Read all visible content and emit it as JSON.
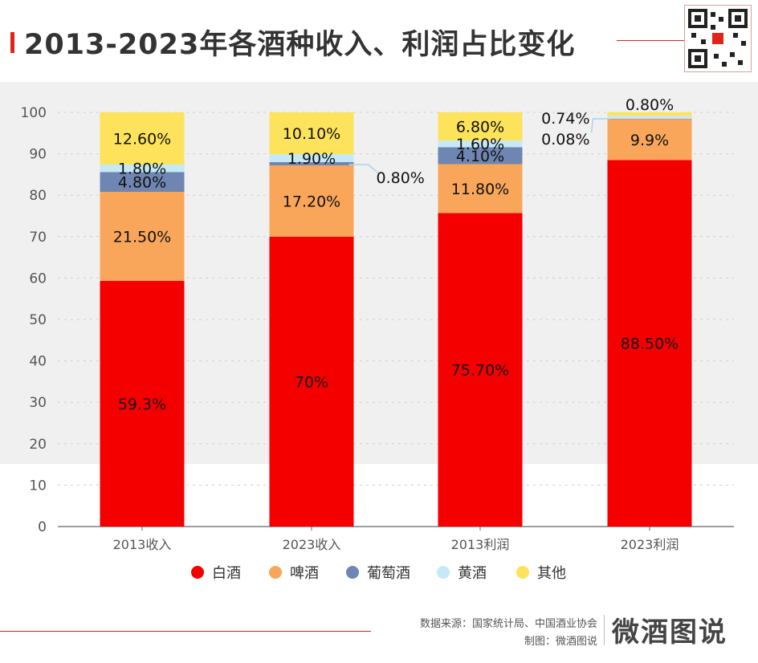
{
  "title": "2013-2023年各酒种收入、利润占比变化",
  "footer": {
    "source": "数据来源：国家统计局、中国酒业协会",
    "maker": "制图：微酒图说",
    "brand": "微酒图说"
  },
  "colors": {
    "accent": "#e2231a",
    "白酒": "#f50000",
    "啤酒": "#f9a65a",
    "葡萄酒": "#6f86b2",
    "黄酒": "#c6e9f7",
    "其他": "#fce35b"
  },
  "chart_data": {
    "type": "bar",
    "stacked": true,
    "categories": [
      "2013收入",
      "2023收入",
      "2013利润",
      "2023利润"
    ],
    "series": [
      {
        "name": "白酒",
        "values": [
          59.3,
          70,
          75.7,
          88.5
        ],
        "labels": [
          "59.3%",
          "70%",
          "75.70%",
          "88.50%"
        ]
      },
      {
        "name": "啤酒",
        "values": [
          21.5,
          17.2,
          11.8,
          9.9
        ],
        "labels": [
          "21.50%",
          "17.20%",
          "11.80%",
          "9.9%"
        ]
      },
      {
        "name": "葡萄酒",
        "values": [
          4.8,
          0.8,
          4.1,
          0.08
        ],
        "labels": [
          "4.80%",
          "0.80%",
          "4.10%",
          "0.08%"
        ]
      },
      {
        "name": "黄酒",
        "values": [
          1.8,
          1.9,
          1.6,
          0.74
        ],
        "labels": [
          "1.80%",
          "1.90%",
          "1.60%",
          "0.74%"
        ]
      },
      {
        "name": "其他",
        "values": [
          12.6,
          10.1,
          6.8,
          0.8
        ],
        "labels": [
          "12.60%",
          "10.10%",
          "6.80%",
          "0.80%"
        ]
      }
    ],
    "ylim": [
      0,
      100
    ],
    "yticks": [
      0,
      10,
      20,
      30,
      40,
      50,
      60,
      70,
      80,
      90,
      100
    ],
    "grid": true,
    "legend": "bottom",
    "xlabel": "",
    "ylabel": ""
  }
}
